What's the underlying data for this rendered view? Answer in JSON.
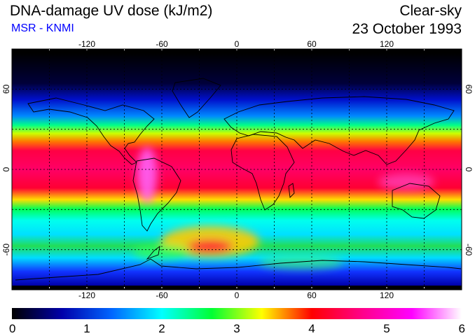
{
  "header": {
    "title": "DNA-damage UV dose (kJ/m2)",
    "source": "MSR - KNMI",
    "scene": "Clear-sky",
    "date": "23 October 1993"
  },
  "map": {
    "projection": "equirectangular",
    "lon_range": [
      -180,
      180
    ],
    "lat_range": [
      -90,
      90
    ],
    "graticule_lon": [
      -150,
      -120,
      -90,
      -60,
      -30,
      0,
      30,
      60,
      90,
      120,
      150
    ],
    "graticule_lat": [
      -60,
      -30,
      0,
      30,
      60
    ],
    "lon_ticks": [
      {
        "value": -120,
        "label": "-120"
      },
      {
        "value": -60,
        "label": "-60"
      },
      {
        "value": 0,
        "label": "0"
      },
      {
        "value": 60,
        "label": "60"
      },
      {
        "value": 120,
        "label": "120"
      }
    ],
    "lat_ticks": [
      {
        "value": 60,
        "label": "60"
      },
      {
        "value": 0,
        "label": "0"
      },
      {
        "value": -60,
        "label": "-60"
      }
    ],
    "lat_ticks_right": [
      {
        "value": 60,
        "label": "60"
      },
      {
        "value": 0,
        "label": "0"
      },
      {
        "value": -60,
        "label": "-60"
      }
    ]
  },
  "colorbar": {
    "min": 0,
    "max": 6,
    "labels": [
      "0",
      "1",
      "2",
      "3",
      "4",
      "5",
      "6"
    ],
    "stops": [
      "#000000",
      "#0000aa",
      "#0066ff",
      "#00ffff",
      "#00ff33",
      "#ffff00",
      "#ff0000",
      "#ff0088",
      "#ff00ff",
      "#ffffff"
    ]
  }
}
